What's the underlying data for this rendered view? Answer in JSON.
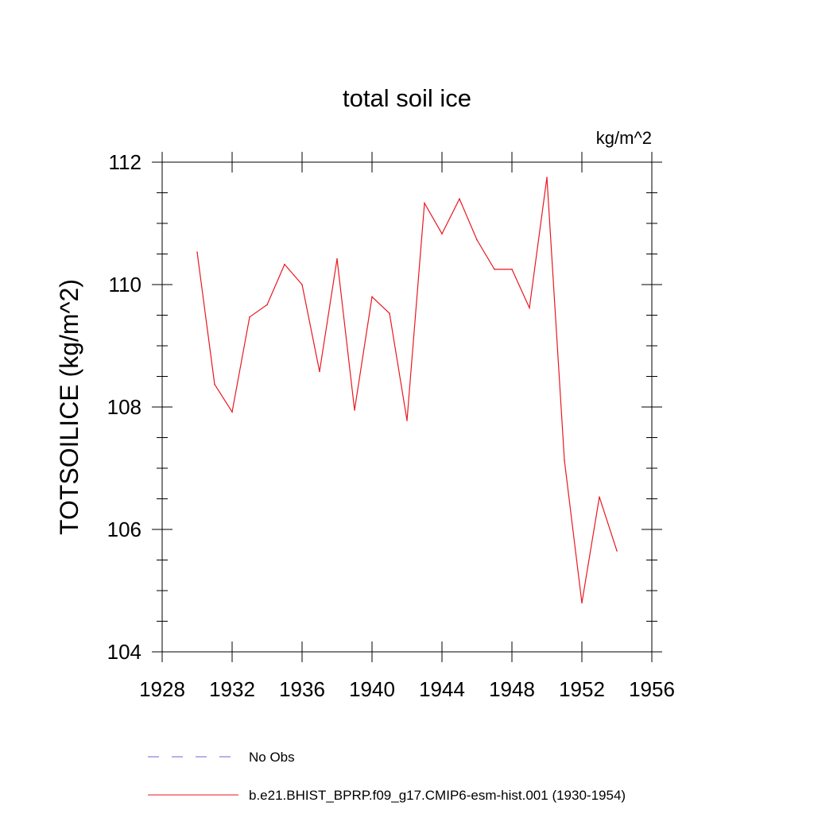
{
  "chart_data": {
    "type": "line",
    "title": "total soil ice",
    "units_label": "kg/m^2",
    "ylabel": "TOTSOILICE  (kg/m^2)",
    "xlabel": "",
    "xlim": [
      1928,
      1956
    ],
    "ylim": [
      104,
      112
    ],
    "x_ticks": [
      1928,
      1932,
      1936,
      1940,
      1944,
      1948,
      1952,
      1956
    ],
    "x_tick_labels": [
      "1928",
      "1932",
      "1936",
      "1940",
      "1944",
      "1948",
      "1952",
      "1956"
    ],
    "y_ticks": [
      104,
      106,
      108,
      110,
      112
    ],
    "y_tick_labels": [
      "104",
      "106",
      "108",
      "110",
      "112"
    ],
    "grid": false,
    "legend_position": "bottom",
    "series": [
      {
        "name": "No Obs",
        "color": "#6a6ad0",
        "dash": "dashed",
        "x": [],
        "values": []
      },
      {
        "name": "b.e21.BHIST_BPRP.f09_g17.CMIP6-esm-hist.001 (1930-1954)",
        "color": "#e8181f",
        "dash": "solid",
        "x": [
          1930,
          1931,
          1932,
          1933,
          1934,
          1935,
          1936,
          1937,
          1938,
          1939,
          1940,
          1941,
          1942,
          1943,
          1944,
          1945,
          1946,
          1947,
          1948,
          1949,
          1950,
          1951,
          1952,
          1953,
          1954
        ],
        "values": [
          110.53,
          108.37,
          107.92,
          109.47,
          109.67,
          110.33,
          110.0,
          108.58,
          110.42,
          107.95,
          109.8,
          109.53,
          107.78,
          111.33,
          110.83,
          111.4,
          110.73,
          110.25,
          110.25,
          109.62,
          111.75,
          107.13,
          104.8,
          106.53,
          105.65
        ]
      }
    ]
  }
}
